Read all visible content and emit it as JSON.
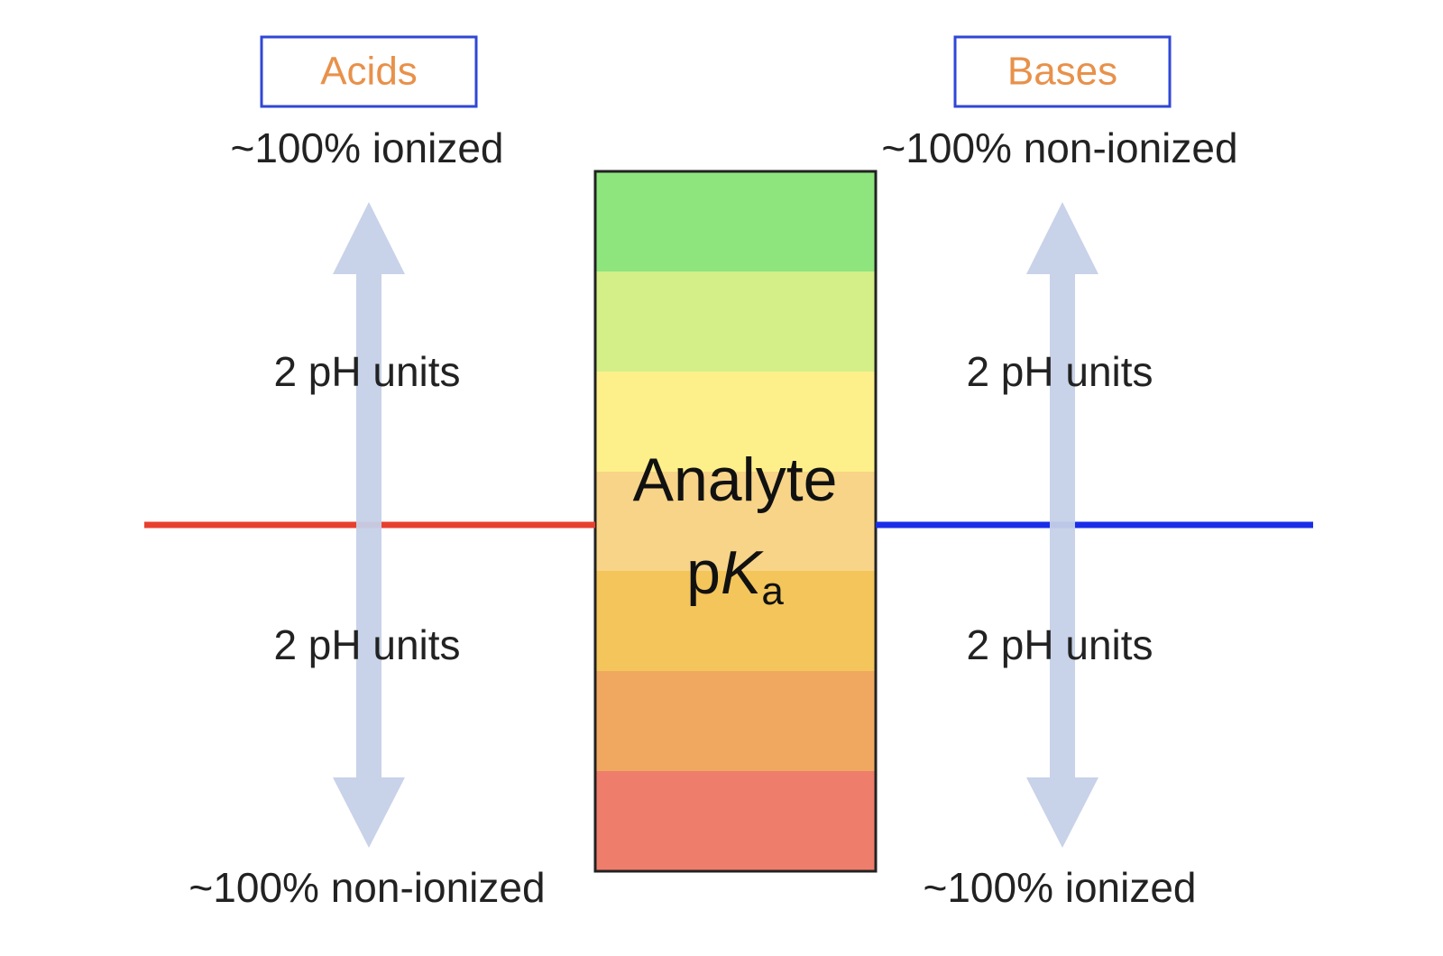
{
  "acids": {
    "title": "Acids",
    "top": "~100% ionized",
    "upper_span": "2 pH units",
    "lower_span": "2 pH units",
    "bottom": "~100% non-ionized"
  },
  "bases": {
    "title": "Bases",
    "top": "~100% non-ionized",
    "upper_span": "2 pH units",
    "lower_span": "2 pH units",
    "bottom": "~100% ionized"
  },
  "center": {
    "line1": "Analyte",
    "p": "p",
    "K": "K",
    "sub": "a"
  }
}
